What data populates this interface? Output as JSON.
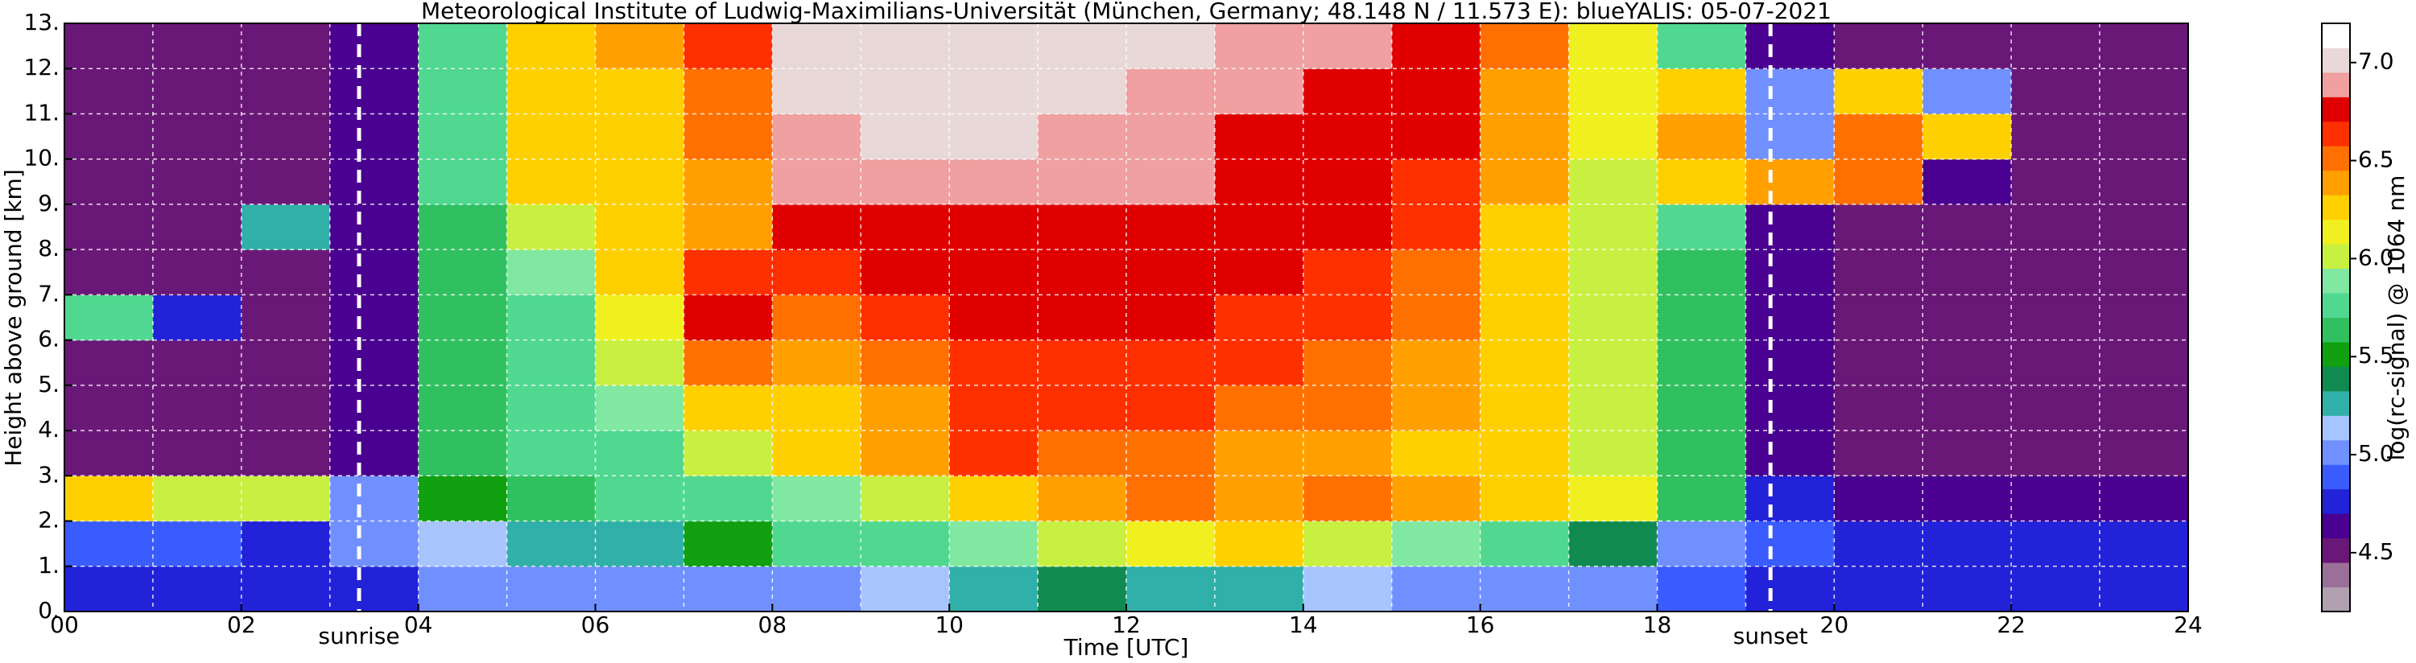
{
  "chart_data": {
    "type": "heatmap",
    "title": "Meteorological Institute of Ludwig-Maximilians-Universität (München, Germany; 48.148 N / 11.573 E):    blueYALIS: 05-07-2021",
    "x_label": "Time [UTC]",
    "y_label": "Height above ground [km]",
    "colorbar_label": "log(rc-signal) @ 1064 nm",
    "xlim": [
      0,
      24
    ],
    "ylim": [
      0,
      13
    ],
    "xticks": [
      {
        "value": 0,
        "label": "00"
      },
      {
        "value": 2,
        "label": "02"
      },
      {
        "value": 4,
        "label": "04"
      },
      {
        "value": 6,
        "label": "06"
      },
      {
        "value": 8,
        "label": "08"
      },
      {
        "value": 10,
        "label": "10"
      },
      {
        "value": 12,
        "label": "12"
      },
      {
        "value": 14,
        "label": "14"
      },
      {
        "value": 16,
        "label": "16"
      },
      {
        "value": 18,
        "label": "18"
      },
      {
        "value": 20,
        "label": "20"
      },
      {
        "value": 22,
        "label": "22"
      },
      {
        "value": 24,
        "label": "24"
      }
    ],
    "xminorticks": [
      1,
      3,
      5,
      7,
      9,
      11,
      13,
      15,
      17,
      19,
      21,
      23
    ],
    "yticks": [
      {
        "value": 0,
        "label": "0."
      },
      {
        "value": 1,
        "label": "1."
      },
      {
        "value": 2,
        "label": "2."
      },
      {
        "value": 3,
        "label": "3."
      },
      {
        "value": 4,
        "label": "4."
      },
      {
        "value": 5,
        "label": "5."
      },
      {
        "value": 6,
        "label": "6."
      },
      {
        "value": 7,
        "label": "7."
      },
      {
        "value": 8,
        "label": "8."
      },
      {
        "value": 9,
        "label": "9."
      },
      {
        "value": 10,
        "label": "10."
      },
      {
        "value": 11,
        "label": "11."
      },
      {
        "value": 12,
        "label": "12."
      },
      {
        "value": 13,
        "label": "13."
      }
    ],
    "grid": true,
    "grid_color": "#ffffff",
    "annotations": [
      {
        "text": "sunrise",
        "x": 3.33
      },
      {
        "text": "sunset",
        "x": 19.28
      }
    ],
    "zlim": [
      4.2,
      7.2
    ],
    "zticks": [
      4.5,
      {
        "value": 5,
        "label": "5.0"
      },
      5.5,
      {
        "value": 6,
        "label": "6.0"
      },
      6.5,
      {
        "value": 7,
        "label": "7.0"
      }
    ],
    "colormap": [
      "#b0a0b0",
      "#9a7098",
      "#6a1878",
      "#4a0090",
      "#2222d8",
      "#3a5cff",
      "#7090ff",
      "#a8c4ff",
      "#30b0a8",
      "#108a50",
      "#10a010",
      "#30c060",
      "#50d890",
      "#80e8a0",
      "#c8f040",
      "#f0f020",
      "#ffd000",
      "#ffa000",
      "#ff7000",
      "#ff3000",
      "#e00000",
      "#f0a0a0",
      "#e8d8d8",
      "#ffffff"
    ],
    "xbins": [
      0,
      1,
      2,
      3,
      4,
      5,
      6,
      7,
      8,
      9,
      10,
      11,
      12,
      13,
      14,
      15,
      16,
      17,
      18,
      19,
      20,
      21,
      22,
      23,
      24
    ],
    "ybins": [
      0,
      1,
      2,
      3,
      4,
      5,
      6,
      7,
      8,
      9,
      10,
      11,
      12,
      13
    ],
    "z": [
      [
        4.7,
        4.7,
        4.7,
        4.8,
        5.0,
        5.0,
        5.0,
        5.0,
        5.0,
        5.1,
        5.2,
        5.4,
        5.3,
        5.2,
        5.1,
        5.0,
        5.0,
        5.0,
        4.9,
        4.8,
        4.7,
        4.7,
        4.7,
        4.7
      ],
      [
        4.9,
        4.9,
        4.8,
        5.0,
        5.1,
        5.2,
        5.3,
        5.5,
        5.8,
        5.8,
        5.9,
        6.0,
        6.1,
        6.2,
        6.0,
        5.9,
        5.7,
        5.4,
        5.0,
        4.9,
        4.8,
        4.8,
        4.8,
        4.8
      ],
      [
        6.2,
        6.0,
        6.0,
        5.0,
        5.5,
        5.6,
        5.7,
        5.8,
        5.9,
        6.0,
        6.2,
        6.4,
        6.5,
        6.4,
        6.5,
        6.4,
        6.3,
        6.1,
        5.6,
        4.7,
        4.6,
        4.6,
        4.6,
        4.6
      ],
      [
        4.5,
        4.5,
        4.5,
        4.6,
        5.6,
        5.7,
        5.8,
        6.0,
        6.2,
        6.4,
        6.6,
        6.5,
        6.5,
        6.4,
        6.4,
        6.3,
        6.2,
        6.0,
        5.6,
        4.6,
        4.5,
        4.5,
        4.5,
        4.5
      ],
      [
        4.5,
        4.5,
        4.5,
        4.6,
        5.6,
        5.7,
        5.9,
        6.3,
        6.3,
        6.4,
        6.6,
        6.6,
        6.6,
        6.5,
        6.5,
        6.4,
        6.2,
        6.0,
        5.6,
        4.6,
        4.5,
        4.5,
        4.5,
        4.5
      ],
      [
        4.5,
        4.5,
        4.5,
        4.6,
        5.6,
        5.8,
        6.0,
        6.5,
        6.4,
        6.5,
        6.6,
        6.6,
        6.6,
        6.6,
        6.5,
        6.4,
        6.3,
        6.0,
        5.6,
        4.6,
        4.5,
        4.5,
        4.5,
        4.5
      ],
      [
        5.8,
        4.8,
        4.5,
        4.6,
        5.6,
        5.8,
        6.1,
        6.8,
        6.5,
        6.6,
        6.7,
        6.7,
        6.7,
        6.6,
        6.6,
        6.5,
        6.3,
        6.0,
        5.6,
        4.6,
        4.5,
        4.5,
        4.5,
        4.5
      ],
      [
        4.5,
        4.5,
        4.5,
        4.6,
        5.6,
        5.9,
        6.2,
        6.6,
        6.6,
        6.7,
        6.8,
        6.8,
        6.7,
        6.7,
        6.6,
        6.5,
        6.3,
        6.0,
        5.6,
        4.6,
        4.5,
        4.5,
        4.5,
        4.5
      ],
      [
        4.5,
        4.5,
        5.2,
        4.6,
        5.6,
        6.0,
        6.2,
        6.4,
        6.8,
        6.8,
        6.8,
        6.8,
        6.8,
        6.7,
        6.7,
        6.6,
        6.3,
        6.0,
        5.7,
        4.6,
        4.5,
        4.5,
        4.5,
        4.5
      ],
      [
        4.5,
        4.5,
        4.5,
        4.6,
        5.7,
        6.2,
        6.3,
        6.4,
        6.9,
        6.9,
        6.9,
        6.9,
        6.9,
        6.8,
        6.8,
        6.6,
        6.4,
        6.0,
        6.2,
        6.4,
        6.5,
        4.6,
        4.5,
        4.5
      ],
      [
        4.5,
        4.5,
        4.5,
        4.6,
        5.7,
        6.2,
        6.3,
        6.5,
        6.9,
        7.0,
        7.0,
        6.9,
        6.9,
        6.8,
        6.8,
        6.7,
        6.4,
        6.1,
        6.4,
        5.0,
        6.5,
        6.2,
        4.5,
        4.5
      ],
      [
        4.5,
        4.5,
        4.5,
        4.6,
        5.8,
        6.2,
        6.3,
        6.5,
        7.0,
        7.0,
        7.0,
        7.0,
        6.9,
        6.9,
        6.8,
        6.7,
        6.4,
        6.1,
        6.3,
        5.0,
        6.3,
        5.0,
        4.5,
        4.5
      ],
      [
        4.5,
        4.5,
        4.5,
        4.6,
        5.8,
        6.3,
        6.4,
        6.6,
        7.0,
        7.0,
        7.0,
        7.0,
        7.0,
        6.9,
        6.9,
        6.7,
        6.5,
        6.1,
        5.7,
        4.6,
        4.5,
        4.5,
        4.5,
        4.5
      ]
    ]
  }
}
